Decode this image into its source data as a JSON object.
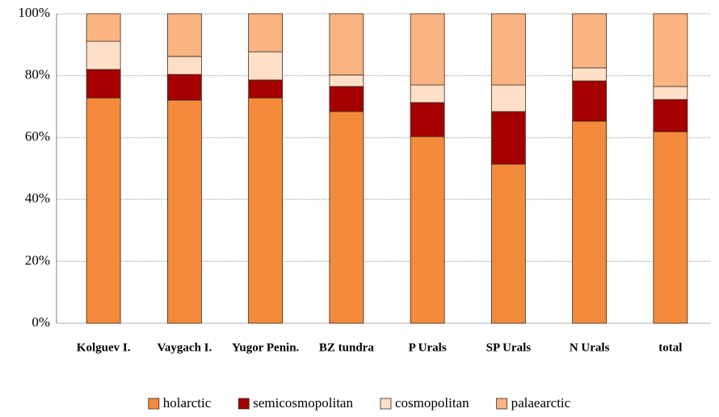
{
  "chart_data": {
    "type": "stacked_bar",
    "categories": [
      "Kolguev I.",
      "Vaygach I.",
      "Yugor Penin.",
      "BZ tundra",
      "P Urals",
      "SP Urals",
      "N Urals",
      "total"
    ],
    "series": [
      {
        "name": "holarctic",
        "color": "#f48a3c",
        "values": [
          72.8,
          72.1,
          72.8,
          68.4,
          60.3,
          51.4,
          65.3,
          61.9
        ]
      },
      {
        "name": "semicosmopolitan",
        "color": "#a50000",
        "values": [
          9.2,
          8.3,
          5.8,
          8.1,
          11.0,
          17.0,
          13.0,
          10.4
        ]
      },
      {
        "name": "cosmopolitan",
        "color": "#fde0c7",
        "values": [
          9.1,
          5.8,
          9.1,
          3.7,
          5.7,
          8.6,
          4.2,
          4.2
        ]
      },
      {
        "name": "palaearctic",
        "color": "#f9b482",
        "values": [
          8.9,
          13.8,
          12.3,
          19.8,
          23.0,
          23.0,
          17.5,
          23.5
        ]
      }
    ],
    "ylim": [
      0,
      100
    ],
    "yticks": [
      {
        "value": 0,
        "label": "0%"
      },
      {
        "value": 20,
        "label": "20%"
      },
      {
        "value": 40,
        "label": "40%"
      },
      {
        "value": 60,
        "label": "60%"
      },
      {
        "value": 80,
        "label": "80%"
      },
      {
        "value": 100,
        "label": "100%"
      }
    ],
    "grid": true,
    "legend": "bottom"
  }
}
